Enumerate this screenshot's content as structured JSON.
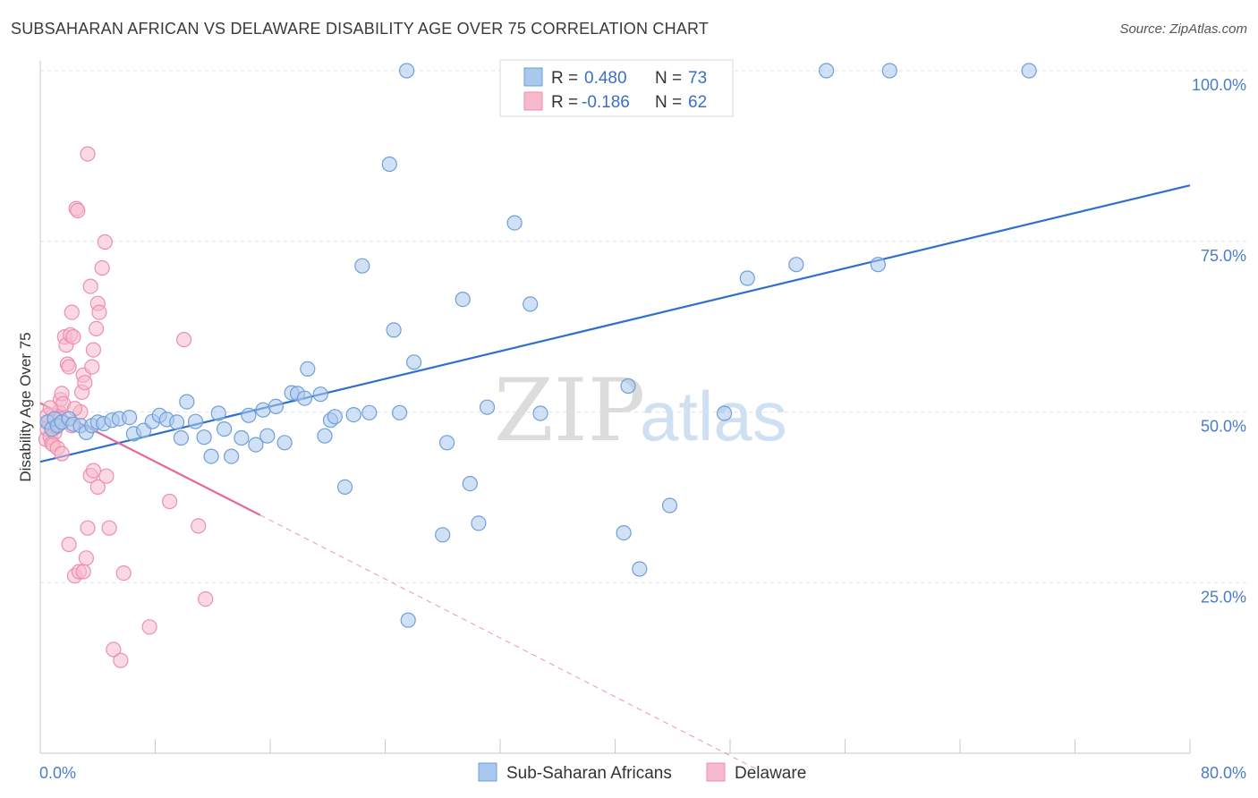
{
  "title": "SUBSAHARAN AFRICAN VS DELAWARE DISABILITY AGE OVER 75 CORRELATION CHART",
  "source": "Source: ZipAtlas.com",
  "watermark": {
    "part1": "ZIP",
    "part2": "atlas"
  },
  "legend": {
    "r_label": "R =",
    "n_label": "N =",
    "rows": [
      {
        "r": "0.480",
        "n": "73"
      },
      {
        "r": "-0.186",
        "n": "62"
      }
    ]
  },
  "colors": {
    "blue_fill": "#aac8ee",
    "blue_stroke": "#6f9fd8",
    "blue_line": "#2f6fce",
    "pink_fill": "#f7b9cc",
    "pink_stroke": "#ec8fae",
    "pink_line": "#e8679a",
    "axis_text": "#4a7cc9",
    "grid": "#dde3ea"
  },
  "chart_data": {
    "type": "scatter",
    "xlabel": "",
    "ylabel": "Disability Age Over 75",
    "xlim": [
      0,
      80
    ],
    "ylim": [
      0,
      105
    ],
    "x_ticks": [
      "0.0%",
      "80.0%"
    ],
    "y_ticks": [
      {
        "value": 25,
        "label": "25.0%"
      },
      {
        "value": 50,
        "label": "50.0%"
      },
      {
        "value": 75,
        "label": "75.0%"
      },
      {
        "value": 100,
        "label": "100.0%"
      }
    ],
    "grid": true,
    "legend_position": "bottom",
    "series": [
      {
        "name": "Sub-Saharan Africans",
        "color": "#aac8ee",
        "trend": {
          "x1": 0,
          "y1": 42.7,
          "x2": 80,
          "y2": 83.2
        },
        "points": [
          [
            0.5,
            48.5
          ],
          [
            0.8,
            47.5
          ],
          [
            1.0,
            49.0
          ],
          [
            1.2,
            48.0
          ],
          [
            1.5,
            48.5
          ],
          [
            2.0,
            49.0
          ],
          [
            2.3,
            48.2
          ],
          [
            2.8,
            48.0
          ],
          [
            3.2,
            47.0
          ],
          [
            3.6,
            48.0
          ],
          [
            4.0,
            48.5
          ],
          [
            4.4,
            48.3
          ],
          [
            5.0,
            48.8
          ],
          [
            5.5,
            49.0
          ],
          [
            6.2,
            49.2
          ],
          [
            6.5,
            46.8
          ],
          [
            7.2,
            47.3
          ],
          [
            7.8,
            48.6
          ],
          [
            8.3,
            49.5
          ],
          [
            8.8,
            48.9
          ],
          [
            9.5,
            48.5
          ],
          [
            9.8,
            46.2
          ],
          [
            10.2,
            51.5
          ],
          [
            10.8,
            48.6
          ],
          [
            11.4,
            46.3
          ],
          [
            11.9,
            43.5
          ],
          [
            12.4,
            49.8
          ],
          [
            12.8,
            47.5
          ],
          [
            13.3,
            43.5
          ],
          [
            14.0,
            46.2
          ],
          [
            14.5,
            49.5
          ],
          [
            15.0,
            45.2
          ],
          [
            15.5,
            50.3
          ],
          [
            15.8,
            46.5
          ],
          [
            16.4,
            50.8
          ],
          [
            17.0,
            45.5
          ],
          [
            17.5,
            52.8
          ],
          [
            17.9,
            52.7
          ],
          [
            18.4,
            52.0
          ],
          [
            18.6,
            56.3
          ],
          [
            19.5,
            52.6
          ],
          [
            19.8,
            46.5
          ],
          [
            20.2,
            48.8
          ],
          [
            20.5,
            49.3
          ],
          [
            21.2,
            39.0
          ],
          [
            21.8,
            49.6
          ],
          [
            22.4,
            71.4
          ],
          [
            22.9,
            49.9
          ],
          [
            24.3,
            86.3
          ],
          [
            24.6,
            62.0
          ],
          [
            25.0,
            49.9
          ],
          [
            25.5,
            100.0
          ],
          [
            25.6,
            19.5
          ],
          [
            26.0,
            57.3
          ],
          [
            28.3,
            45.5
          ],
          [
            28.0,
            32.0
          ],
          [
            29.4,
            66.5
          ],
          [
            29.9,
            39.5
          ],
          [
            30.5,
            33.7
          ],
          [
            31.1,
            50.7
          ],
          [
            33.0,
            100.0
          ],
          [
            33.0,
            77.7
          ],
          [
            34.1,
            65.8
          ],
          [
            34.8,
            49.8
          ],
          [
            40.6,
            32.3
          ],
          [
            40.9,
            53.8
          ],
          [
            41.7,
            27.0
          ],
          [
            43.8,
            36.3
          ],
          [
            47.6,
            49.8
          ],
          [
            49.2,
            69.6
          ],
          [
            52.6,
            71.6
          ],
          [
            54.7,
            100.0
          ],
          [
            59.1,
            100.0
          ],
          [
            58.3,
            71.6
          ],
          [
            68.8,
            100.0
          ]
        ]
      },
      {
        "name": "Delaware",
        "color": "#f7b9cc",
        "trend": {
          "x1": 0,
          "y1": 51.3,
          "x2": 15.3,
          "y2": 34.9,
          "dash_x2": 50,
          "dash_y2": -2.5
        },
        "points": [
          [
            0.4,
            46.0
          ],
          [
            0.5,
            47.5
          ],
          [
            0.6,
            48.6
          ],
          [
            0.7,
            46.3
          ],
          [
            0.8,
            45.4
          ],
          [
            0.9,
            49.5
          ],
          [
            1.0,
            47.0
          ],
          [
            1.1,
            47.8
          ],
          [
            1.2,
            48.2
          ],
          [
            1.3,
            50.0
          ],
          [
            1.4,
            51.8
          ],
          [
            1.5,
            52.7
          ],
          [
            1.6,
            51.2
          ],
          [
            1.7,
            61.0
          ],
          [
            1.8,
            59.8
          ],
          [
            1.9,
            57.0
          ],
          [
            2.0,
            56.6
          ],
          [
            2.1,
            61.3
          ],
          [
            2.2,
            64.6
          ],
          [
            2.3,
            61.0
          ],
          [
            2.5,
            79.8
          ],
          [
            2.6,
            79.5
          ],
          [
            2.8,
            50.0
          ],
          [
            2.9,
            52.9
          ],
          [
            3.0,
            55.4
          ],
          [
            3.1,
            54.3
          ],
          [
            3.3,
            87.8
          ],
          [
            3.5,
            68.4
          ],
          [
            3.6,
            56.6
          ],
          [
            3.7,
            59.1
          ],
          [
            3.9,
            62.2
          ],
          [
            4.0,
            65.9
          ],
          [
            4.1,
            64.6
          ],
          [
            4.3,
            71.1
          ],
          [
            4.5,
            74.9
          ],
          [
            0.9,
            45.2
          ],
          [
            1.2,
            44.7
          ],
          [
            1.5,
            43.9
          ],
          [
            2.0,
            30.6
          ],
          [
            2.4,
            26.0
          ],
          [
            2.7,
            26.6
          ],
          [
            3.0,
            26.6
          ],
          [
            3.2,
            28.6
          ],
          [
            3.3,
            33.0
          ],
          [
            3.5,
            40.7
          ],
          [
            3.7,
            41.4
          ],
          [
            4.0,
            39.0
          ],
          [
            4.6,
            40.6
          ],
          [
            4.8,
            33.0
          ],
          [
            5.1,
            15.2
          ],
          [
            5.6,
            13.6
          ],
          [
            5.8,
            26.4
          ],
          [
            7.6,
            18.5
          ],
          [
            9.0,
            36.9
          ],
          [
            10.0,
            60.6
          ],
          [
            11.0,
            33.3
          ],
          [
            11.5,
            22.6
          ],
          [
            0.5,
            49.5
          ],
          [
            0.7,
            50.6
          ],
          [
            1.4,
            49.0
          ],
          [
            2.2,
            48.0
          ],
          [
            2.4,
            50.5
          ]
        ]
      }
    ]
  },
  "bottom_legend": [
    {
      "label": "Sub-Saharan Africans"
    },
    {
      "label": "Delaware"
    }
  ]
}
